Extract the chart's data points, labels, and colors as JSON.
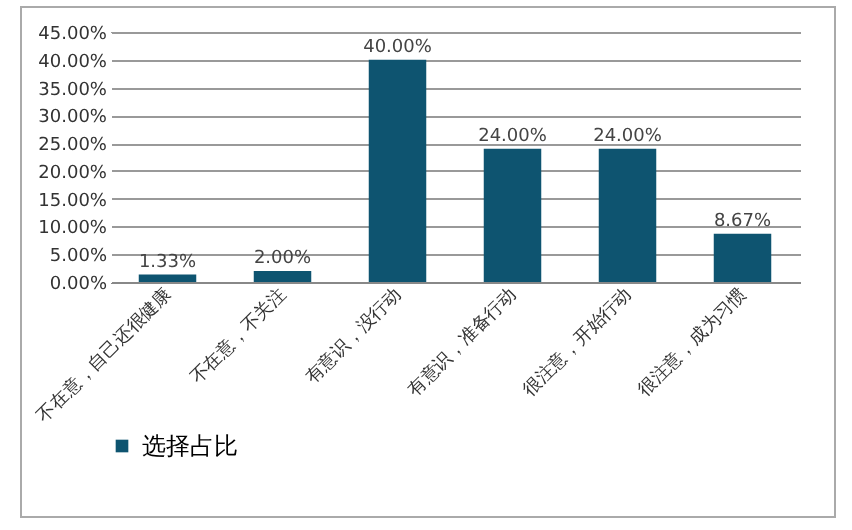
{
  "chart_data": {
    "type": "bar",
    "categories": [
      "不在意，自己还很健康",
      "不在意，不关注",
      "有意识，没行动",
      "有意识，准备行动",
      "很注意，开始行动",
      "很注意，成为习惯"
    ],
    "series": [
      {
        "name": "选择占比",
        "color": "#0e5470",
        "values": [
          1.33,
          2.0,
          40.0,
          24.0,
          24.0,
          8.67
        ],
        "value_labels": [
          "1.33%",
          "2.00%",
          "40.00%",
          "24.00%",
          "24.00%",
          "8.67%"
        ]
      }
    ],
    "ylim": [
      0,
      45
    ],
    "yticks": [
      {
        "value": 0,
        "label": "0.00%"
      },
      {
        "value": 5,
        "label": "5.00%"
      },
      {
        "value": 10,
        "label": "10.00%"
      },
      {
        "value": 15,
        "label": "15.00%"
      },
      {
        "value": 20,
        "label": "20.00%"
      },
      {
        "value": 25,
        "label": "25.00%"
      },
      {
        "value": 30,
        "label": "30.00%"
      },
      {
        "value": 35,
        "label": "35.00%"
      },
      {
        "value": 40,
        "label": "40.00%"
      },
      {
        "value": 45,
        "label": "45.00%"
      }
    ],
    "grid": "y",
    "legend": "bottom"
  }
}
